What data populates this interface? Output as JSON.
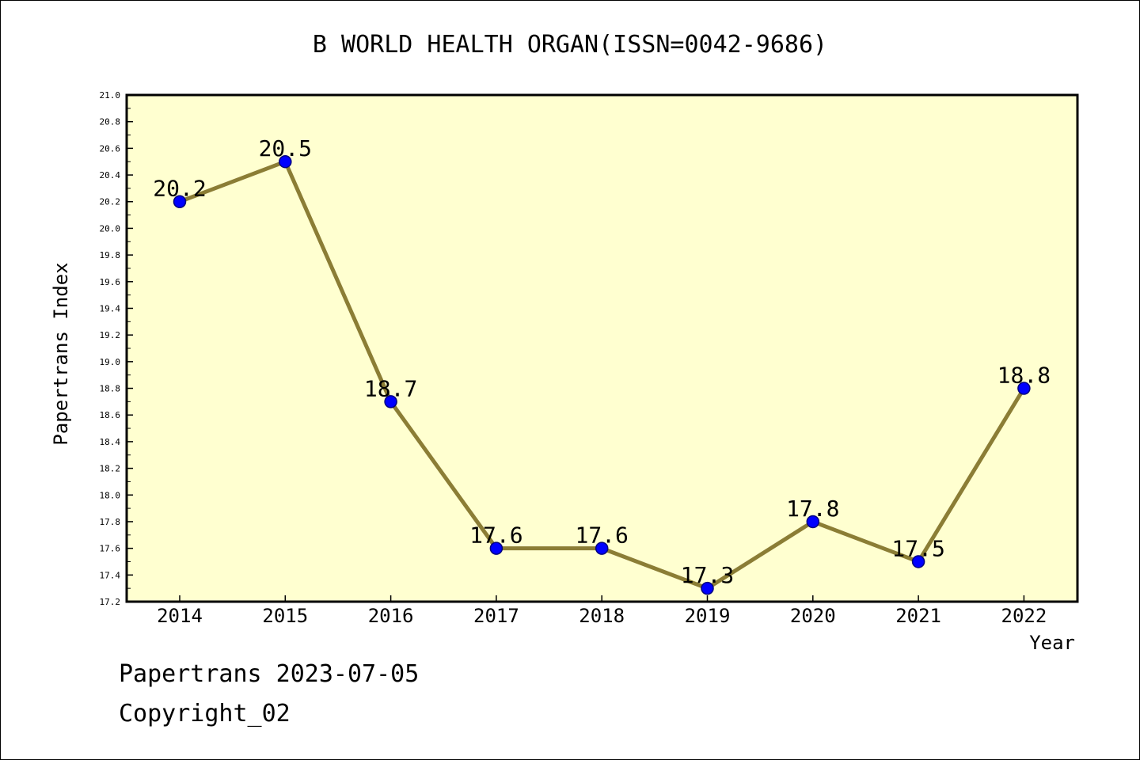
{
  "chart_data": {
    "type": "line",
    "title": "B WORLD HEALTH ORGAN(ISSN=0042-9686)",
    "xlabel": "Year",
    "ylabel": "Papertrans Index",
    "categories": [
      "2014",
      "2015",
      "2016",
      "2017",
      "2018",
      "2019",
      "2020",
      "2021",
      "2022"
    ],
    "series": [
      {
        "values": [
          20.2,
          20.5,
          18.7,
          17.6,
          17.6,
          17.3,
          17.8,
          17.5,
          18.8
        ]
      }
    ],
    "data_labels": [
      "20.2",
      "20.5",
      "18.7",
      "17.6",
      "17.6",
      "17.3",
      "17.8",
      "17.5",
      "18.8"
    ],
    "ylim": [
      17.2,
      21.0
    ],
    "yticks": [
      "17.2",
      "17.4",
      "17.6",
      "17.8",
      "18.0",
      "18.2",
      "18.4",
      "18.6",
      "18.8",
      "19.0",
      "19.2",
      "19.4",
      "19.6",
      "19.8",
      "20.0",
      "20.2",
      "20.4",
      "20.6",
      "20.8",
      "21.0"
    ],
    "grid": false,
    "legend": "none",
    "colors": {
      "plot_background": "#ffffd0",
      "line": "#8b7d35",
      "marker": "#0000ff",
      "marker_edge": "#000080"
    }
  },
  "footer": {
    "line1": "Papertrans 2023-07-05",
    "line2": "Copyright_02"
  }
}
